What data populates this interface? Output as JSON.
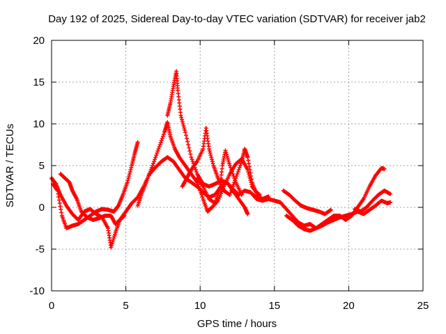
{
  "chart_data": {
    "type": "scatter",
    "title": "Day 192 of 2025, Sidereal Day-to-day VTEC variation (SDTVAR) for receiver jab2",
    "xlabel": "GPS time / hours",
    "ylabel": "SDTVAR / TECUs",
    "xlim": [
      0,
      25
    ],
    "ylim": [
      -10,
      20
    ],
    "xticks": [
      0,
      5,
      10,
      15,
      20,
      25
    ],
    "yticks": [
      -10,
      -5,
      0,
      5,
      10,
      15,
      20
    ],
    "grid": true,
    "marker": "+",
    "series_color": "#ff0000",
    "series": [
      {
        "name": "track-1",
        "points": [
          [
            0.0,
            3.5
          ],
          [
            0.3,
            2.8
          ],
          [
            0.6,
            1.5
          ],
          [
            1.0,
            0.2
          ],
          [
            1.4,
            -0.8
          ],
          [
            1.8,
            -1.5
          ],
          [
            2.2,
            -0.5
          ],
          [
            2.6,
            -0.2
          ],
          [
            3.0,
            -0.8
          ],
          [
            3.4,
            -1.2
          ],
          [
            3.8,
            -2.5
          ],
          [
            4.0,
            -4.8
          ],
          [
            4.3,
            -3.0
          ],
          [
            4.6,
            -1.5
          ],
          [
            5.0,
            -0.5
          ],
          [
            5.4,
            0.5
          ],
          [
            5.8,
            1.2
          ],
          [
            6.2,
            2.5
          ],
          [
            6.6,
            4.0
          ],
          [
            7.0,
            4.8
          ],
          [
            7.4,
            5.5
          ],
          [
            7.8,
            6.0
          ],
          [
            8.2,
            5.5
          ],
          [
            8.6,
            4.5
          ],
          [
            9.0,
            3.5
          ],
          [
            9.4,
            3.0
          ],
          [
            9.8,
            2.5
          ],
          [
            10.2,
            1.8
          ],
          [
            10.6,
            1.2
          ],
          [
            11.0,
            1.5
          ],
          [
            11.4,
            2.5
          ],
          [
            11.8,
            3.0
          ],
          [
            12.2,
            2.2
          ],
          [
            12.6,
            1.5
          ],
          [
            13.0,
            2.0
          ],
          [
            13.4,
            1.8
          ],
          [
            13.8,
            1.0
          ],
          [
            14.2,
            0.8
          ],
          [
            14.6,
            1.0
          ],
          [
            15.0,
            0.8
          ],
          [
            15.4,
            0.6
          ],
          [
            15.8,
            -0.2
          ],
          [
            16.2,
            -1.0
          ],
          [
            16.6,
            -1.8
          ],
          [
            17.0,
            -2.2
          ],
          [
            17.4,
            -2.0
          ],
          [
            17.8,
            -2.5
          ],
          [
            18.2,
            -2.2
          ],
          [
            18.6,
            -1.8
          ],
          [
            19.0,
            -1.5
          ],
          [
            19.4,
            -1.2
          ],
          [
            19.8,
            -1.0
          ],
          [
            20.2,
            -0.8
          ],
          [
            20.6,
            -0.5
          ],
          [
            21.0,
            -0.8
          ],
          [
            21.4,
            -0.3
          ],
          [
            21.8,
            0.2
          ],
          [
            22.2,
            0.8
          ],
          [
            22.6,
            0.5
          ],
          [
            22.8,
            0.6
          ]
        ]
      },
      {
        "name": "track-2",
        "points": [
          [
            0.1,
            2.8
          ],
          [
            0.4,
            2.0
          ],
          [
            0.7,
            -1.0
          ],
          [
            1.0,
            -2.5
          ],
          [
            1.4,
            -2.2
          ],
          [
            1.8,
            -2.0
          ],
          [
            2.2,
            -1.5
          ],
          [
            2.6,
            -1.0
          ],
          [
            3.0,
            -0.5
          ],
          [
            3.4,
            -0.2
          ],
          [
            3.8,
            -0.3
          ],
          [
            4.2,
            -0.5
          ],
          [
            4.5,
            0.2
          ],
          [
            4.8,
            1.5
          ],
          [
            5.1,
            3.0
          ],
          [
            5.4,
            5.0
          ],
          [
            5.6,
            6.5
          ],
          [
            5.8,
            7.8
          ]
        ]
      },
      {
        "name": "track-3",
        "points": [
          [
            0.6,
            4.0
          ],
          [
            0.9,
            3.5
          ],
          [
            1.2,
            3.0
          ],
          [
            1.4,
            2.0
          ],
          [
            1.7,
            1.0
          ],
          [
            2.0,
            -0.5
          ],
          [
            2.4,
            -1.2
          ],
          [
            2.8,
            -1.5
          ],
          [
            3.2,
            -1.3
          ],
          [
            3.6,
            -1.0
          ],
          [
            4.0,
            -1.0
          ],
          [
            4.3,
            -2.0
          ],
          [
            4.6,
            -1.5
          ],
          [
            4.9,
            -1.0
          ]
        ]
      },
      {
        "name": "track-4",
        "points": [
          [
            5.8,
            0.2
          ],
          [
            6.1,
            1.8
          ],
          [
            6.4,
            3.2
          ],
          [
            6.8,
            5.0
          ],
          [
            7.2,
            7.0
          ],
          [
            7.6,
            9.0
          ],
          [
            7.8,
            10.2
          ],
          [
            8.0,
            8.5
          ],
          [
            8.3,
            7.0
          ],
          [
            8.6,
            6.0
          ],
          [
            9.0,
            5.0
          ],
          [
            9.4,
            4.0
          ],
          [
            9.8,
            3.0
          ],
          [
            10.2,
            1.0
          ],
          [
            10.5,
            -0.5
          ],
          [
            10.8,
            0.0
          ],
          [
            11.2,
            0.8
          ],
          [
            11.6,
            2.5
          ],
          [
            12.0,
            4.0
          ],
          [
            12.4,
            5.2
          ],
          [
            12.8,
            5.8
          ],
          [
            13.2,
            4.5
          ],
          [
            13.5,
            2.5
          ],
          [
            13.8,
            1.8
          ],
          [
            14.0,
            1.5
          ]
        ]
      },
      {
        "name": "track-5",
        "points": [
          [
            7.8,
            11.0
          ],
          [
            8.0,
            12.5
          ],
          [
            8.2,
            14.5
          ],
          [
            8.4,
            16.3
          ],
          [
            8.5,
            14.0
          ],
          [
            8.7,
            11.0
          ],
          [
            9.0,
            9.0
          ],
          [
            9.4,
            6.0
          ],
          [
            9.8,
            4.0
          ],
          [
            10.2,
            2.8
          ],
          [
            10.6,
            2.5
          ],
          [
            11.0,
            2.8
          ],
          [
            11.4,
            3.2
          ],
          [
            11.8,
            3.0
          ],
          [
            12.2,
            2.0
          ],
          [
            12.6,
            1.0
          ],
          [
            13.0,
            0.0
          ],
          [
            13.2,
            -0.8
          ]
        ]
      },
      {
        "name": "track-6",
        "points": [
          [
            8.8,
            2.5
          ],
          [
            9.1,
            3.5
          ],
          [
            9.4,
            4.5
          ],
          [
            9.8,
            5.5
          ],
          [
            10.2,
            7.0
          ],
          [
            10.4,
            9.5
          ],
          [
            10.6,
            7.0
          ],
          [
            10.9,
            5.0
          ],
          [
            11.2,
            3.5
          ],
          [
            11.6,
            2.0
          ],
          [
            12.0,
            1.5
          ],
          [
            12.4,
            3.5
          ],
          [
            12.8,
            5.5
          ],
          [
            13.0,
            7.0
          ],
          [
            13.2,
            6.0
          ],
          [
            13.5,
            3.0
          ],
          [
            13.8,
            1.5
          ],
          [
            14.2,
            1.0
          ],
          [
            14.6,
            1.3
          ]
        ]
      },
      {
        "name": "track-7",
        "points": [
          [
            9.8,
            3.5
          ],
          [
            10.2,
            2.5
          ],
          [
            10.6,
            1.0
          ],
          [
            11.0,
            0.5
          ],
          [
            11.3,
            2.0
          ],
          [
            11.5,
            5.0
          ],
          [
            11.7,
            6.8
          ],
          [
            12.0,
            5.0
          ],
          [
            12.4,
            3.0
          ],
          [
            12.8,
            1.5
          ]
        ]
      },
      {
        "name": "track-8",
        "points": [
          [
            15.6,
            2.0
          ],
          [
            16.0,
            1.5
          ],
          [
            16.4,
            0.8
          ],
          [
            16.8,
            0.2
          ],
          [
            17.2,
            -0.1
          ],
          [
            17.6,
            -0.3
          ],
          [
            18.0,
            -0.5
          ],
          [
            18.4,
            -0.8
          ],
          [
            18.8,
            -0.3
          ]
        ]
      },
      {
        "name": "track-9",
        "points": [
          [
            15.8,
            -1.0
          ],
          [
            16.2,
            -1.5
          ],
          [
            16.6,
            -2.2
          ],
          [
            17.0,
            -2.6
          ],
          [
            17.4,
            -2.8
          ],
          [
            17.8,
            -2.5
          ],
          [
            18.2,
            -2.0
          ],
          [
            18.6,
            -1.5
          ],
          [
            19.0,
            -1.0
          ],
          [
            19.4,
            -1.0
          ],
          [
            19.8,
            -1.5
          ],
          [
            20.2,
            -1.0
          ],
          [
            20.6,
            0.0
          ],
          [
            21.0,
            1.0
          ],
          [
            21.4,
            2.5
          ],
          [
            21.8,
            3.8
          ],
          [
            22.2,
            4.7
          ],
          [
            22.4,
            4.6
          ]
        ]
      },
      {
        "name": "track-10",
        "points": [
          [
            20.4,
            -0.2
          ],
          [
            20.8,
            -0.5
          ],
          [
            21.2,
            0.0
          ],
          [
            21.6,
            0.8
          ],
          [
            22.0,
            1.5
          ],
          [
            22.4,
            2.0
          ],
          [
            22.8,
            1.6
          ]
        ]
      }
    ]
  }
}
